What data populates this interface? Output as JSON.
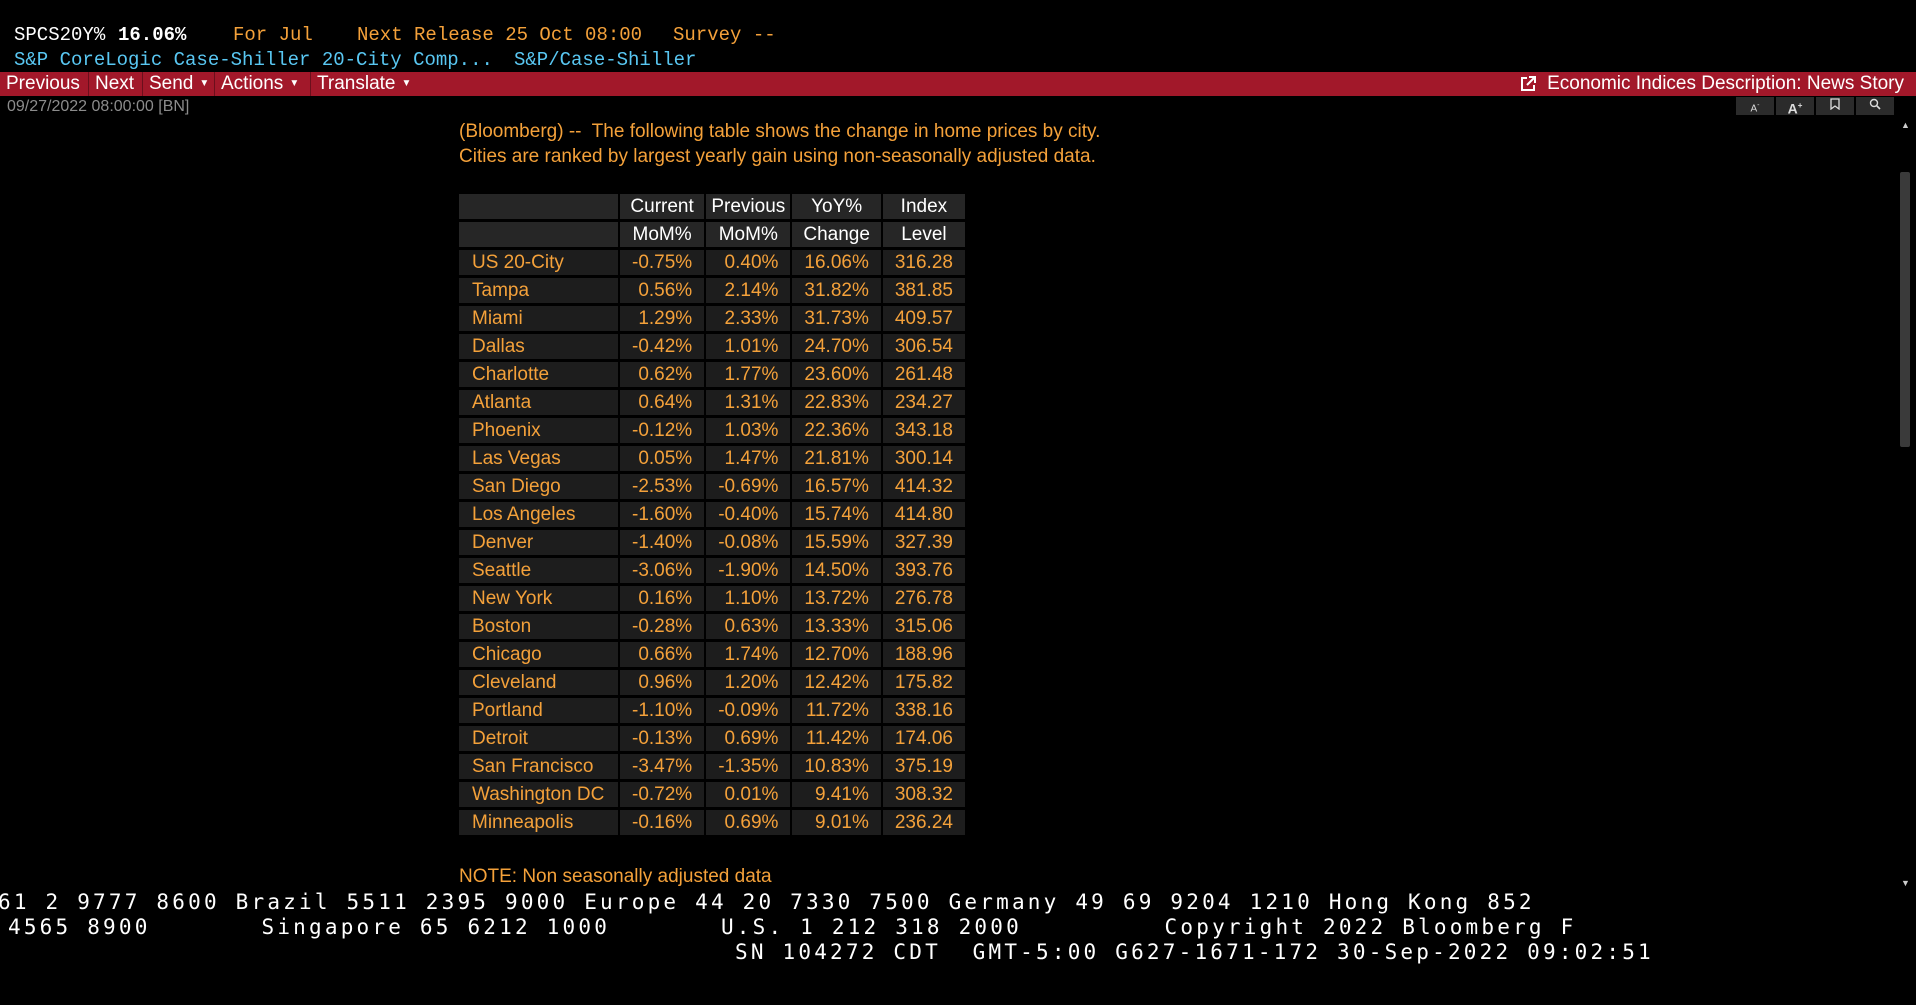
{
  "header": {
    "ticker": "SPCS20Y%",
    "value": "16.06%",
    "for_label": "For Jul",
    "next_release": "Next Release 25 Oct 08:00",
    "survey": "Survey --",
    "title": "S&P CoreLogic Case-Shiller 20-City Comp...",
    "source": "S&P/Case-Shiller"
  },
  "toolbar": {
    "previous": "Previous",
    "next": "Next",
    "send": "Send",
    "actions": "Actions",
    "translate": "Translate",
    "story_link": "Economic Indices Description: News Story"
  },
  "dateline": "09/27/2022 08:00:00 [BN]",
  "minibar": [
    "A",
    "A",
    "",
    ""
  ],
  "story": {
    "intro_line1": "(Bloomberg) --  The following table shows the change in home prices by city.",
    "intro_line2": "Cities are ranked by largest yearly gain using non-seasonally adjusted data.",
    "note": "NOTE: Non seasonally adjusted data"
  },
  "table": {
    "headers_top": [
      "Current",
      "Previous",
      "YoY%",
      "Index"
    ],
    "headers_bottom": [
      "MoM%",
      "MoM%",
      "Change",
      "Level"
    ],
    "rows": [
      [
        "US 20-City",
        "-0.75%",
        "0.40%",
        "16.06%",
        "316.28"
      ],
      [
        "Tampa",
        "0.56%",
        "2.14%",
        "31.82%",
        "381.85"
      ],
      [
        "Miami",
        "1.29%",
        "2.33%",
        "31.73%",
        "409.57"
      ],
      [
        "Dallas",
        "-0.42%",
        "1.01%",
        "24.70%",
        "306.54"
      ],
      [
        "Charlotte",
        "0.62%",
        "1.77%",
        "23.60%",
        "261.48"
      ],
      [
        "Atlanta",
        "0.64%",
        "1.31%",
        "22.83%",
        "234.27"
      ],
      [
        "Phoenix",
        "-0.12%",
        "1.03%",
        "22.36%",
        "343.18"
      ],
      [
        "Las Vegas",
        "0.05%",
        "1.47%",
        "21.81%",
        "300.14"
      ],
      [
        "San Diego",
        "-2.53%",
        "-0.69%",
        "16.57%",
        "414.32"
      ],
      [
        "Los Angeles",
        "-1.60%",
        "-0.40%",
        "15.74%",
        "414.80"
      ],
      [
        "Denver",
        "-1.40%",
        "-0.08%",
        "15.59%",
        "327.39"
      ],
      [
        "Seattle",
        "-3.06%",
        "-1.90%",
        "14.50%",
        "393.76"
      ],
      [
        "New York",
        "0.16%",
        "1.10%",
        "13.72%",
        "276.78"
      ],
      [
        "Boston",
        "-0.28%",
        "0.63%",
        "13.33%",
        "315.06"
      ],
      [
        "Chicago",
        "0.66%",
        "1.74%",
        "12.70%",
        "188.96"
      ],
      [
        "Cleveland",
        "0.96%",
        "1.20%",
        "12.42%",
        "175.82"
      ],
      [
        "Portland",
        "-1.10%",
        "-0.09%",
        "11.72%",
        "338.16"
      ],
      [
        "Detroit",
        "-0.13%",
        "0.69%",
        "11.42%",
        "174.06"
      ],
      [
        "San Francisco",
        "-3.47%",
        "-1.35%",
        "10.83%",
        "375.19"
      ],
      [
        "Washington DC",
        "-0.72%",
        "0.01%",
        "9.41%",
        "308.32"
      ],
      [
        "Minneapolis",
        "-0.16%",
        "0.69%",
        "9.01%",
        "236.24"
      ]
    ]
  },
  "footer": {
    "line1": "61 2 9777 8600 Brazil 5511 2395 9000 Europe 44 20 7330 7500 Germany 49 69 9204 1210 Hong Kong 852",
    "line2": "4565 8900       Singapore 65 6212 1000       U.S. 1 212 318 2000         Copyright 2022 Bloomberg F",
    "line3": "SN 104272 CDT  GMT-5:00 G627-1671-172 30-Sep-2022 09:02:51"
  }
}
